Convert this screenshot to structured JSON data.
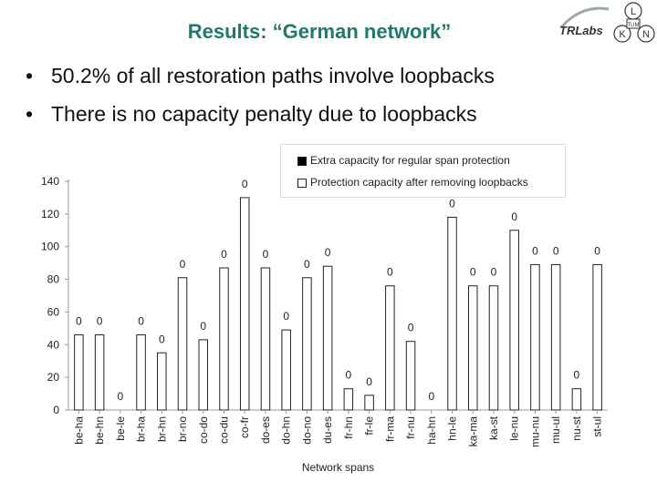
{
  "slide": {
    "title": "Results: “German network”",
    "bullets": [
      "50.2% of all restoration paths involve loopbacks",
      "There is no capacity penalty due to loopbacks"
    ],
    "bullet_symbol": "•"
  },
  "logo": {
    "text": "TRLabs",
    "circle_letters": [
      "L",
      "K",
      "N"
    ],
    "emblem_glyph": "TUM"
  },
  "colors": {
    "title": "#1f7a6a",
    "extra_capacity": "#000000",
    "protection_capacity": "#ffffff"
  },
  "chart_data": {
    "type": "bar",
    "xlabel": "Network spans",
    "ylabel": "",
    "ylim": [
      0,
      140
    ],
    "yticks": [
      0,
      20,
      40,
      60,
      80,
      100,
      120,
      140
    ],
    "grid": false,
    "legend_position": "top-right",
    "categories": [
      "be-ha",
      "be-hn",
      "be-le",
      "br-ha",
      "br-hn",
      "br-no",
      "co-do",
      "co-du",
      "co-fr",
      "do-es",
      "do-hn",
      "do-no",
      "du-es",
      "fr-hn",
      "fr-le",
      "fr-ma",
      "fr-nu",
      "ha-hn",
      "hn-le",
      "ka-ma",
      "ka-st",
      "le-nu",
      "mu-nu",
      "mu-ul",
      "nu-st",
      "st-ul"
    ],
    "series": [
      {
        "name": "Extra capacity for regular span protection",
        "values": [
          0,
          0,
          0,
          0,
          0,
          0,
          0,
          0,
          0,
          0,
          0,
          0,
          0,
          0,
          0,
          0,
          0,
          0,
          0,
          0,
          0,
          0,
          0,
          0,
          0,
          0
        ],
        "labels": [
          "0",
          "0",
          "0",
          "0",
          "0",
          "0",
          "0",
          "0",
          "0",
          "0",
          "0",
          "0",
          "0",
          "0",
          "0",
          "0",
          "0",
          "0",
          "0",
          "0",
          "0",
          "0",
          "0",
          "0",
          "0",
          "0"
        ]
      },
      {
        "name": "Protection capacity after removing loopbacks",
        "values": [
          46,
          46,
          0,
          46,
          35,
          81,
          43,
          87,
          130,
          87,
          49,
          81,
          88,
          13,
          9,
          76,
          42,
          0,
          118,
          76,
          76,
          110,
          89,
          89,
          13,
          89
        ]
      }
    ]
  }
}
